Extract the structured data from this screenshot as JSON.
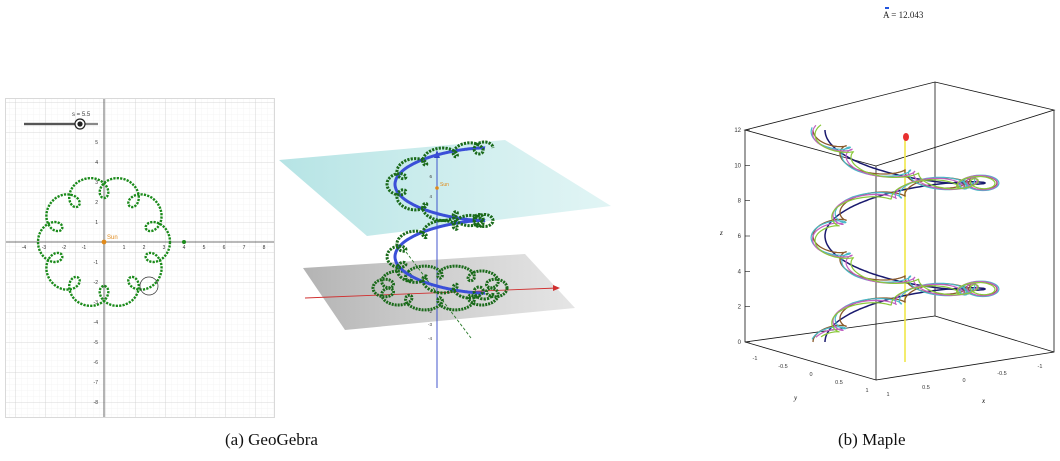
{
  "geogebra": {
    "slider": {
      "label": "s = 5.5",
      "value": 5.5
    },
    "point_sun": "Sun",
    "axis_2d": {
      "x_ticks": [
        "-4",
        "-3",
        "-2",
        "-1",
        "0",
        "1",
        "2",
        "3",
        "4",
        "5",
        "6",
        "7",
        "8"
      ],
      "y_ticks": [
        "5",
        "4",
        "3",
        "2",
        "1",
        "-1",
        "-2",
        "-3",
        "-4",
        "-5",
        "-6",
        "-7",
        "-8"
      ]
    },
    "axis_3d": {
      "z_ticks": [
        "6",
        "4",
        "2",
        "-2",
        "-3",
        "-4"
      ],
      "point_sun": "Sun"
    },
    "colors": {
      "orbit": "#1a8a1a",
      "helix": "#3b4fd8",
      "plane_top": "#a9dfe0",
      "plane_bottom": "#b8b8b8",
      "axis_x": "#d03030",
      "axis_z": "#2f44c8"
    }
  },
  "maple": {
    "label": "A = 12.043",
    "z_label": "z",
    "y_label": "y",
    "x_label": "x",
    "z_ticks": [
      "12",
      "10",
      "8",
      "6",
      "4",
      "2",
      "0"
    ],
    "y_ticks": [
      "-1",
      "-0.5",
      "0",
      "0.5",
      "1"
    ],
    "x_ticks": [
      "1",
      "0.5",
      "0",
      "-0.5",
      "-1"
    ],
    "colors": {
      "helix": "#1a1a6e",
      "vertical_line": "#f0e84a",
      "marker": "#e83030"
    }
  },
  "captions": {
    "a": "(a)  GeoGebra",
    "b": "(b)  Maple"
  }
}
